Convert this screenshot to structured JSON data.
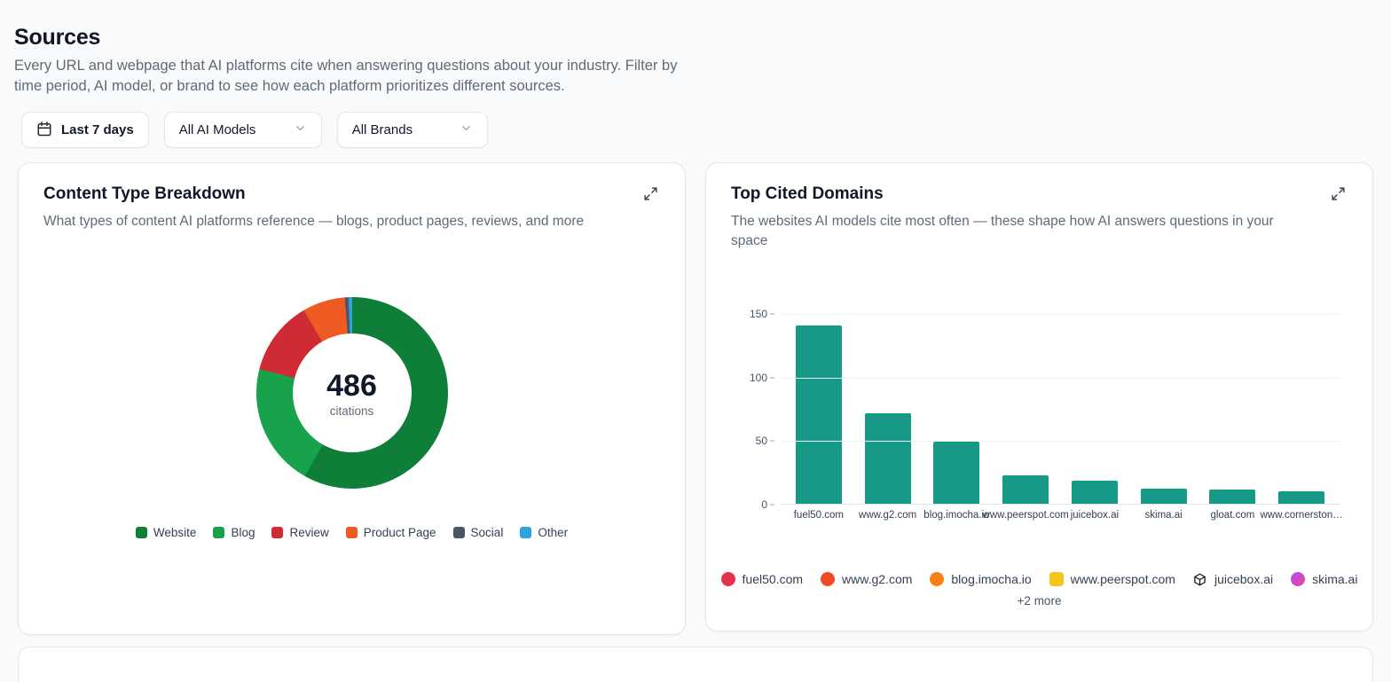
{
  "page": {
    "title": "Sources",
    "description": "Every URL and webpage that AI platforms cite when answering questions about your industry. Filter by time period, AI model, or brand to see how each platform prioritizes different sources."
  },
  "filters": {
    "date_range_label": "Last 7 days",
    "ai_model_value": "All AI Models",
    "brand_value": "All Brands"
  },
  "content_type_card": {
    "title": "Content Type Breakdown",
    "subtitle": "What types of content AI platforms reference — blogs, product pages, reviews, and more",
    "center_value": "486",
    "center_label": "citations"
  },
  "top_domains_card": {
    "title": "Top Cited Domains",
    "subtitle": "The websites AI models cite most often — these shape how AI answers questions in your space",
    "more_label": "+2 more",
    "legend": [
      {
        "label": "fuel50.com",
        "shape": "circle",
        "color": "#e3344f"
      },
      {
        "label": "www.g2.com",
        "shape": "circle",
        "color": "#ef4b25"
      },
      {
        "label": "blog.imocha.io",
        "shape": "circle",
        "color": "#f98012"
      },
      {
        "label": "www.peerspot.com",
        "shape": "rounded-square",
        "color": "#f5c518"
      },
      {
        "label": "juicebox.ai",
        "shape": "cube",
        "color": "#111111"
      },
      {
        "label": "skima.ai",
        "shape": "circle",
        "color": "#b14bf4",
        "color2": "#ec4899"
      }
    ]
  },
  "chart_data": [
    {
      "type": "pie",
      "title": "Content Type Breakdown",
      "total": 486,
      "center_label": "citations",
      "donut": true,
      "legend_position": "bottom",
      "segments": [
        {
          "label": "Website",
          "value": 283,
          "color": "#0e7e38"
        },
        {
          "label": "Blog",
          "value": 101,
          "color": "#17a24b"
        },
        {
          "label": "Review",
          "value": 61,
          "color": "#cf2b35"
        },
        {
          "label": "Product Page",
          "value": 35,
          "color": "#ee5a21"
        },
        {
          "label": "Social",
          "value": 3,
          "color": "#4b5563"
        },
        {
          "label": "Other",
          "value": 3,
          "color": "#2ea2da"
        }
      ]
    },
    {
      "type": "bar",
      "title": "Top Cited Domains",
      "categories": [
        "fuel50.com",
        "www.g2.com",
        "blog.imocha.io",
        "www.peerspot.com",
        "juicebox.ai",
        "skima.ai",
        "gloat.com",
        "www.cornerston…"
      ],
      "values": [
        140,
        71,
        49,
        22,
        18,
        12,
        11,
        10
      ],
      "bar_color": "#169a87",
      "xlabel": "",
      "ylabel": "",
      "ylim": [
        0,
        150
      ],
      "yticks": [
        0,
        50,
        100,
        150
      ],
      "grid": true
    }
  ]
}
